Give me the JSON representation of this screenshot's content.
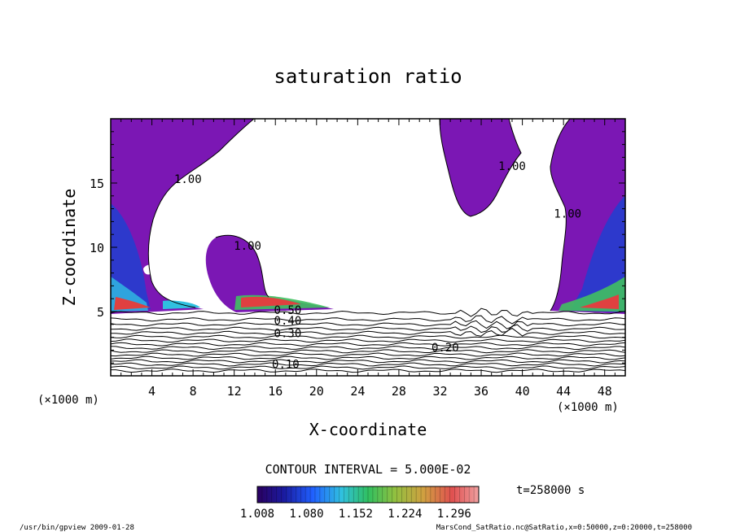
{
  "chart_data": {
    "type": "contour",
    "title": "saturation ratio",
    "xlabel": "X-coordinate",
    "ylabel": "Z-coordinate",
    "x_units": "(×1000 m)",
    "z_units": "(×1000 m)",
    "xlim": [
      0,
      50
    ],
    "ylim": [
      0,
      20
    ],
    "x_ticks": [
      4,
      8,
      12,
      16,
      20,
      24,
      28,
      32,
      36,
      40,
      44,
      48
    ],
    "y_ticks": [
      5,
      10,
      15
    ],
    "contour_interval_text": "CONTOUR INTERVAL = 5.000E-02",
    "contour_interval": 0.05,
    "contour_labels": [
      {
        "text": "1.00",
        "x": 7.5,
        "z": 15.0
      },
      {
        "text": "1.00",
        "x": 13.3,
        "z": 9.8
      },
      {
        "text": "1.00",
        "x": 39.0,
        "z": 16.0
      },
      {
        "text": "1.00",
        "x": 44.4,
        "z": 12.3
      },
      {
        "text": "0.20",
        "x": 32.5,
        "z": 1.9
      },
      {
        "text": "0.10",
        "x": 17.0,
        "z": 0.6
      },
      {
        "text": "0.50",
        "x": 17.2,
        "z": 4.8
      },
      {
        "text": "0.40",
        "x": 17.2,
        "z": 4.0
      },
      {
        "text": "0.30",
        "x": 17.2,
        "z": 3.0
      }
    ],
    "colorbar": {
      "labels": [
        "1.008",
        "1.080",
        "1.152",
        "1.224",
        "1.296"
      ],
      "range": [
        1.008,
        1.332
      ]
    },
    "time_label": "t=258000 s",
    "footer_left": "/usr/bin/gpview  2009-01-28",
    "footer_right": "MarsCond_SatRatio.nc@SatRatio,x=0:50000,z=0:20000,t=258000"
  },
  "colors": {
    "supersat": "#7b17b4",
    "contour": "#000000"
  }
}
